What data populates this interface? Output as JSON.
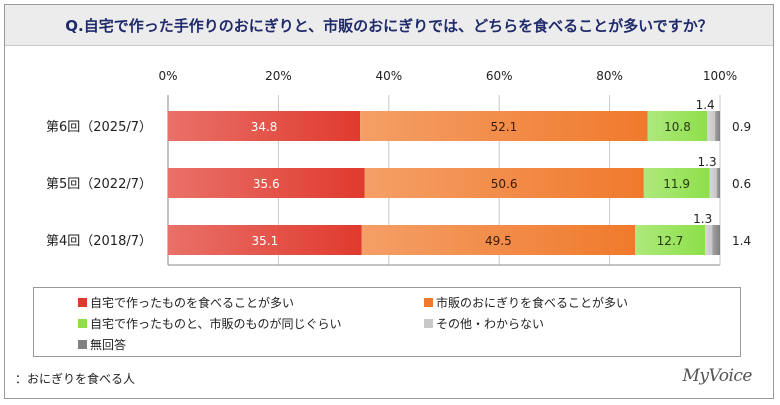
{
  "chart_data": {
    "type": "bar",
    "stacked": true,
    "orientation": "horizontal",
    "title": "Q.自宅で作った手作りのおにぎりと、市販のおにぎりでは、どちらを食べることが多いですか？",
    "categories": [
      "第6回（2025/7）",
      "第5回（2022/7）",
      "第4回（2018/7）"
    ],
    "x_ticks": [
      "0%",
      "20%",
      "40%",
      "60%",
      "80%",
      "100%"
    ],
    "xlim": [
      0,
      100
    ],
    "series": [
      {
        "name": "自宅で作ったものを食べることが多い",
        "color": "#e03a2e",
        "values": [
          34.8,
          35.6,
          35.1
        ]
      },
      {
        "name": "市販のおにぎりを食べることが多い",
        "color": "#f07a2c",
        "values": [
          52.1,
          50.6,
          49.5
        ]
      },
      {
        "name": "自宅で作ったものと、市販のものが同じぐらい",
        "color": "#8ee04a",
        "values": [
          10.8,
          11.9,
          12.7
        ]
      },
      {
        "name": "その他・わからない",
        "color": "#c8c8c8",
        "values": [
          1.4,
          1.3,
          1.3
        ]
      },
      {
        "name": "無回答",
        "color": "#808080",
        "values": [
          0.9,
          0.6,
          1.4
        ]
      }
    ],
    "legend_position": "bottom",
    "grid": true,
    "base_note": "：おにぎりを食べる人",
    "brand": "MyVoice"
  }
}
